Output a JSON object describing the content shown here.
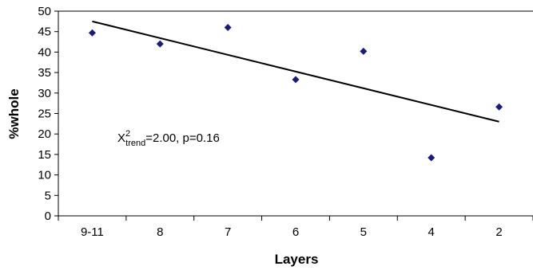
{
  "chart_data": {
    "type": "scatter",
    "title": "",
    "xlabel": "Layers",
    "ylabel": "%whole",
    "categories": [
      "9-11",
      "8",
      "7",
      "6",
      "5",
      "4",
      "2"
    ],
    "ylim": [
      0,
      50
    ],
    "yticks": [
      0,
      5,
      10,
      15,
      20,
      25,
      30,
      35,
      40,
      45,
      50
    ],
    "grid": false,
    "legend": "none",
    "series": [
      {
        "values": [
          44.7,
          42.0,
          46.0,
          33.3,
          40.2,
          14.2,
          26.6
        ],
        "color": "#1a1a80",
        "marker": "diamond"
      }
    ],
    "trendline": {
      "start": 47.5,
      "end": 23.0,
      "color": "#000000"
    },
    "annotation": {
      "base": "X",
      "superscript": "2",
      "subscript": "trend",
      "text": "=2.00, p=0.16"
    }
  }
}
